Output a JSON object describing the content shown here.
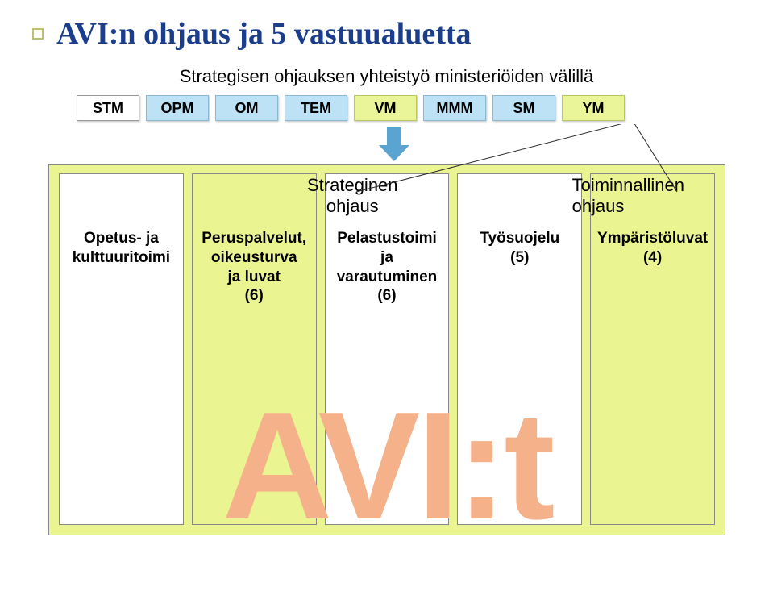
{
  "colors": {
    "title_color": "#1a3e8c",
    "bullet_border": "#bdbf70",
    "blue_box": "#bde2f5",
    "green_box": "#e9f598",
    "big_box_bg": "#eaf491",
    "arrow_color": "#5aa4d1",
    "avi_color": "#f5b18a",
    "line_color": "#2a2a2a"
  },
  "title": "AVI:n ohjaus ja 5 vastuualuetta",
  "subtitle": "Strategisen ohjauksen yhteistyö ministeriöiden välillä",
  "ministries": [
    {
      "label": "STM",
      "style": "white"
    },
    {
      "label": "OPM",
      "style": "blue"
    },
    {
      "label": "OM",
      "style": "blue"
    },
    {
      "label": "TEM",
      "style": "blue"
    },
    {
      "label": "VM",
      "style": "green"
    },
    {
      "label": "MMM",
      "style": "blue"
    },
    {
      "label": "SM",
      "style": "blue"
    },
    {
      "label": "YM",
      "style": "green"
    }
  ],
  "labels": {
    "strategic": "Strateginen\nohjaus",
    "functional": "Toiminnallinen\nohjaus"
  },
  "columns": [
    {
      "text": "Opetus- ja\nkulttuuritoimi",
      "style": "white"
    },
    {
      "text": "Peruspalvelut,\noikeusturva\nja luvat\n(6)",
      "style": "green"
    },
    {
      "text": "Pelastustoimi\nja\nvarautuminen\n(6)",
      "style": "white"
    },
    {
      "text": "Työsuojelu\n(5)",
      "style": "white"
    },
    {
      "text": "Ympäristöluvat\n(4)",
      "style": "green"
    }
  ],
  "watermark": "AVI:t"
}
